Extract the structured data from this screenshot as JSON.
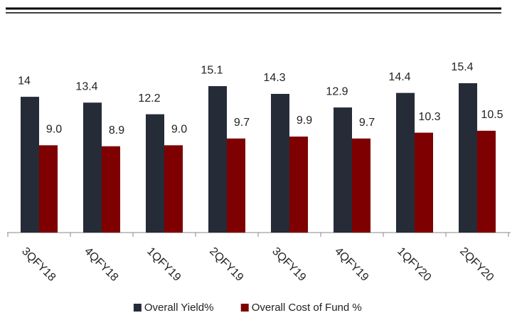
{
  "chart_data": {
    "type": "bar",
    "categories": [
      "3QFY18",
      "4QFY18",
      "1QFY19",
      "2QFY19",
      "3QFY19",
      "4QFY19",
      "1QFY20",
      "2QFY20"
    ],
    "series": [
      {
        "name": "Overall Yield%",
        "color": "#262b38",
        "values": [
          14,
          13.4,
          12.2,
          15.1,
          14.3,
          12.9,
          14.4,
          15.4
        ]
      },
      {
        "name": "Overall Cost of Fund %",
        "color": "#7f0000",
        "values": [
          9.0,
          8.9,
          9.0,
          9.7,
          9.9,
          9.7,
          10.3,
          10.5
        ],
        "value_labels": [
          "9.0",
          "8.9",
          "9.0",
          "9.7",
          "9.9",
          "9.7",
          "10.3",
          "10.5"
        ]
      }
    ]
  }
}
